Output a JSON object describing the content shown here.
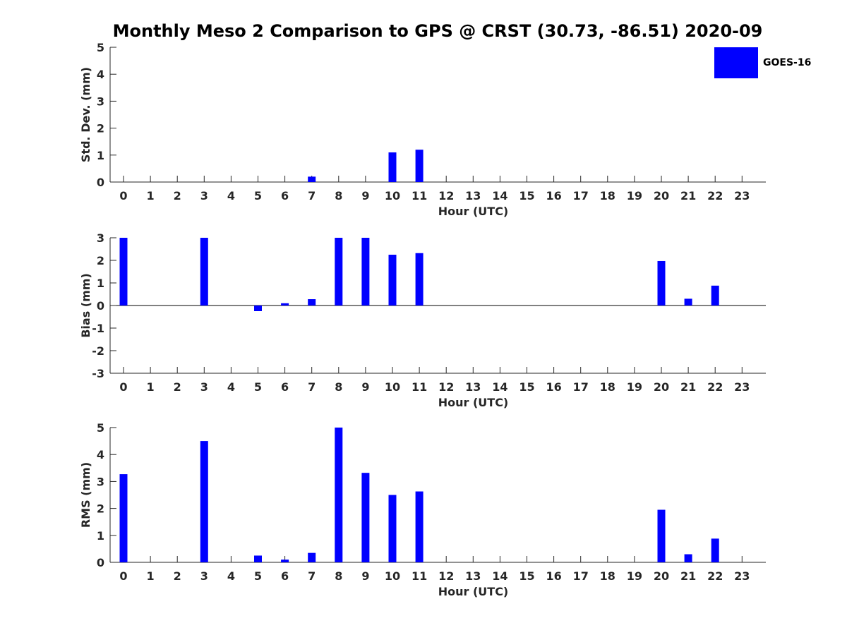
{
  "title": "Monthly Meso 2 Comparison to GPS @ CRST (30.73, -86.51) 2020-09",
  "legend": {
    "label": "GOES-16",
    "color": "#0000ff",
    "placement": "top-right"
  },
  "chart_data": [
    {
      "type": "bar",
      "ylabel": "Std. Dev. (mm)",
      "xlabel": "Hour (UTC)",
      "ylim": [
        0,
        5
      ],
      "yticks": [
        0,
        1,
        2,
        3,
        4,
        5
      ],
      "categories": [
        "0",
        "1",
        "2",
        "3",
        "4",
        "5",
        "6",
        "7",
        "8",
        "9",
        "10",
        "11",
        "12",
        "13",
        "14",
        "15",
        "16",
        "17",
        "18",
        "19",
        "20",
        "21",
        "22",
        "23"
      ],
      "series": [
        {
          "name": "GOES-16",
          "values": [
            0,
            0,
            0,
            0,
            0,
            0,
            0,
            0.2,
            0,
            0,
            1.1,
            1.2,
            0,
            0,
            0,
            0,
            0,
            0,
            0,
            0,
            0,
            0,
            0,
            0
          ]
        }
      ]
    },
    {
      "type": "bar",
      "ylabel": "Bias (mm)",
      "xlabel": "Hour (UTC)",
      "ylim": [
        -3,
        3
      ],
      "yticks": [
        -3,
        -2,
        -1,
        0,
        1,
        2,
        3
      ],
      "categories": [
        "0",
        "1",
        "2",
        "3",
        "4",
        "5",
        "6",
        "7",
        "8",
        "9",
        "10",
        "11",
        "12",
        "13",
        "14",
        "15",
        "16",
        "17",
        "18",
        "19",
        "20",
        "21",
        "22",
        "23"
      ],
      "series": [
        {
          "name": "GOES-16",
          "values": [
            3,
            0,
            0,
            3,
            0,
            -0.25,
            0.1,
            0.28,
            3,
            3,
            2.25,
            2.32,
            0,
            0,
            0,
            0,
            0,
            0,
            0,
            0,
            1.97,
            0.3,
            0.88,
            0
          ]
        }
      ]
    },
    {
      "type": "bar",
      "ylabel": "RMS (mm)",
      "xlabel": "Hour (UTC)",
      "ylim": [
        0,
        5
      ],
      "yticks": [
        0,
        1,
        2,
        3,
        4,
        5
      ],
      "categories": [
        "0",
        "1",
        "2",
        "3",
        "4",
        "5",
        "6",
        "7",
        "8",
        "9",
        "10",
        "11",
        "12",
        "13",
        "14",
        "15",
        "16",
        "17",
        "18",
        "19",
        "20",
        "21",
        "22",
        "23"
      ],
      "series": [
        {
          "name": "GOES-16",
          "values": [
            3.27,
            0,
            0,
            4.5,
            0,
            0.25,
            0.1,
            0.35,
            5,
            3.32,
            2.5,
            2.63,
            0,
            0,
            0,
            0,
            0,
            0,
            0,
            0,
            1.95,
            0.3,
            0.88,
            0
          ]
        }
      ]
    }
  ]
}
